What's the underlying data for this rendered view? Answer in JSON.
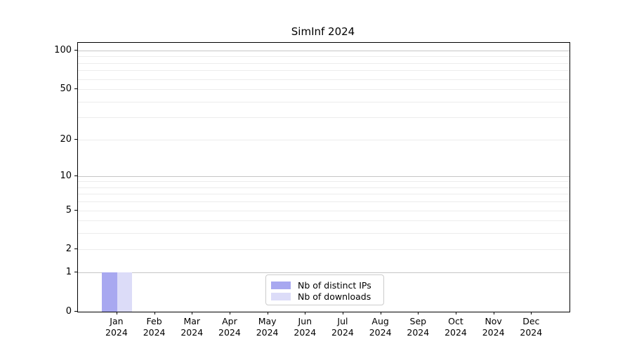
{
  "figure": {
    "title": "SimInf 2024"
  },
  "legend": {
    "items": [
      {
        "label": "Nb of distinct IPs",
        "color": "#a8a8f0"
      },
      {
        "label": "Nb of downloads",
        "color": "#dcdcf8"
      }
    ]
  },
  "chart_data": {
    "type": "bar",
    "title": "SimInf 2024",
    "categories": [
      "Jan",
      "Feb",
      "Mar",
      "Apr",
      "May",
      "Jun",
      "Jul",
      "Aug",
      "Sep",
      "Oct",
      "Nov",
      "Dec"
    ],
    "year": "2024",
    "series": [
      {
        "name": "Nb of distinct IPs",
        "color": "#a8a8f0",
        "values": [
          1,
          0,
          0,
          0,
          0,
          0,
          0,
          0,
          0,
          0,
          0,
          0
        ]
      },
      {
        "name": "Nb of downloads",
        "color": "#dcdcf8",
        "values": [
          1,
          0,
          0,
          0,
          0,
          0,
          0,
          0,
          0,
          0,
          0,
          0
        ]
      }
    ],
    "y_scale": "log1p",
    "ylim": [
      0,
      114.7
    ],
    "xlim": [
      -1.042,
      12.0
    ],
    "bar_width": 0.4,
    "y_ticks": [
      0,
      1,
      2,
      5,
      10,
      20,
      50,
      100
    ],
    "y_gridlines": {
      "major": [
        1,
        10,
        100
      ],
      "minor": [
        2,
        3,
        4,
        5,
        6,
        7,
        8,
        9,
        20,
        30,
        40,
        50,
        60,
        70,
        80,
        90
      ]
    },
    "grid": true,
    "legend_position": "lower center",
    "colors": {
      "grid_major": "#c6c6c6",
      "grid_minor": "#ececec",
      "axis": "#000000",
      "background": "#ffffff"
    }
  }
}
